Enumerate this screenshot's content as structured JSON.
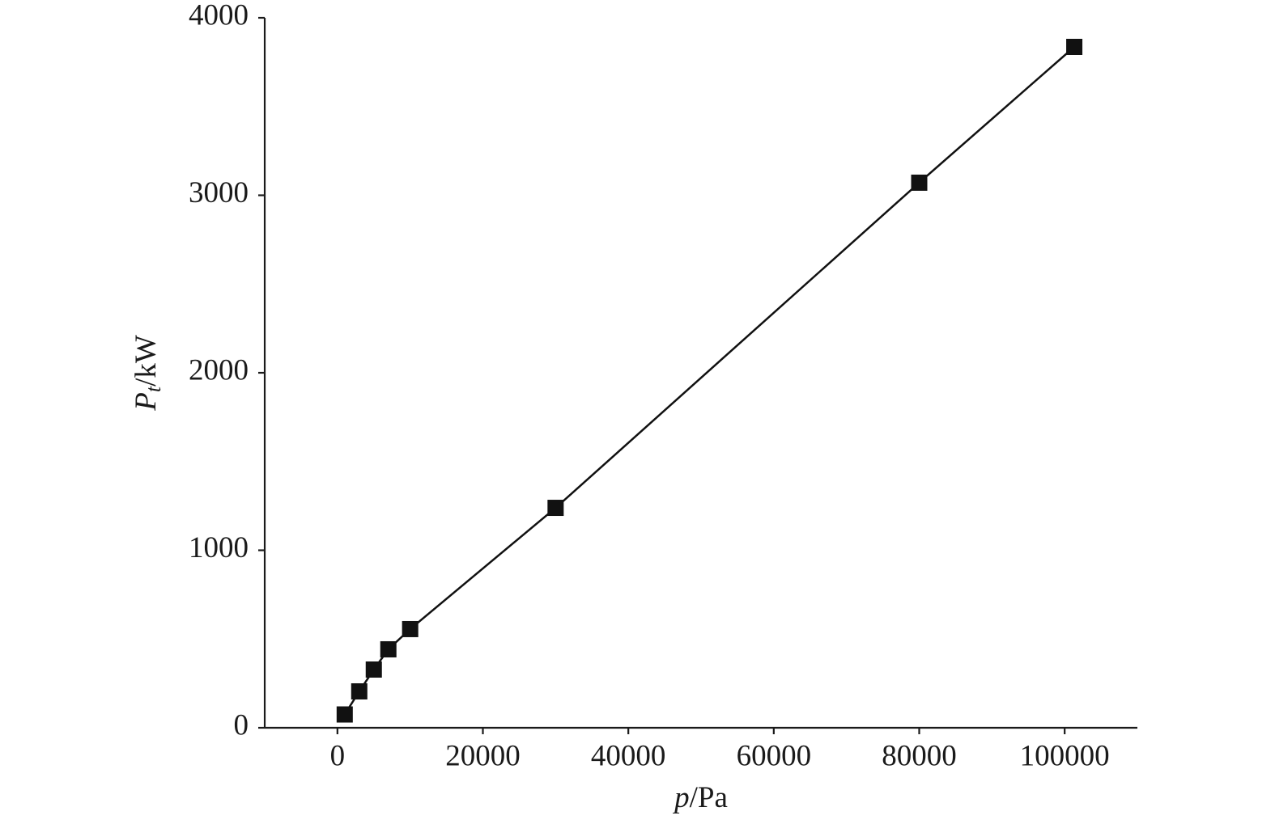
{
  "chart_data": {
    "type": "line",
    "x_label": {
      "symbol": "p",
      "unit": "/Pa"
    },
    "y_label": {
      "symbol": "P",
      "subscript": "t",
      "unit": "/kW"
    },
    "x": [
      1000,
      3000,
      5000,
      7000,
      10000,
      30000,
      80000,
      101325
    ],
    "series": [
      {
        "color": "#111111",
        "marker": "square",
        "values": [
          75,
          205,
          328,
          442,
          556,
          1239,
          3071,
          3836
        ]
      }
    ],
    "xlim": [
      -10000,
      110000
    ],
    "xticks": [
      0,
      20000,
      40000,
      60000,
      80000,
      100000
    ],
    "ylim": [
      0,
      4000
    ],
    "yticks": [
      0,
      1000,
      2000,
      3000,
      4000
    ],
    "grid": false
  }
}
